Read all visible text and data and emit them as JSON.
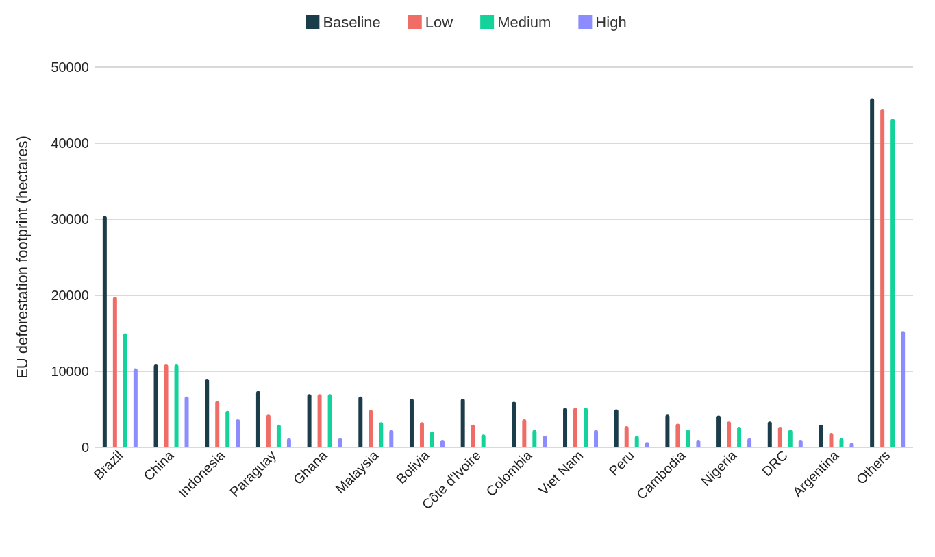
{
  "chart_data": {
    "type": "bar",
    "ylabel": "EU deforestation footprint (hectares)",
    "categories": [
      "Brazil",
      "China",
      "Indonesia",
      "Paraguay",
      "Ghana",
      "Malaysia",
      "Bolivia",
      "Côte d'Ivoire",
      "Colombia",
      "Viet Nam",
      "Peru",
      "Cambodia",
      "Nigeria",
      "DRC",
      "Argentina",
      "Others"
    ],
    "series": [
      {
        "name": "Baseline",
        "color": "#1b3d4a",
        "values": [
          30400,
          10900,
          9000,
          7400,
          7000,
          6700,
          6400,
          6400,
          6000,
          5200,
          5000,
          4300,
          4200,
          3400,
          3000,
          45900
        ]
      },
      {
        "name": "Low",
        "color": "#ef6c67",
        "values": [
          19800,
          10900,
          6100,
          4300,
          7000,
          4900,
          3300,
          3000,
          3700,
          5200,
          2800,
          3100,
          3400,
          2700,
          1900,
          44500
        ]
      },
      {
        "name": "Medium",
        "color": "#14d39a",
        "values": [
          15000,
          10900,
          4800,
          3000,
          7000,
          3300,
          2100,
          1700,
          2300,
          5200,
          1500,
          2300,
          2700,
          2300,
          1200,
          43200
        ]
      },
      {
        "name": "High",
        "color": "#8c8cff",
        "values": [
          10400,
          6700,
          3700,
          1200,
          1200,
          2300,
          1000,
          null,
          1500,
          2300,
          700,
          1000,
          1200,
          1000,
          600,
          15300
        ]
      }
    ],
    "ylim": [
      0,
      50000
    ],
    "yticks": [
      0,
      10000,
      20000,
      30000,
      40000,
      50000
    ],
    "grid": "y",
    "legend": "top"
  }
}
